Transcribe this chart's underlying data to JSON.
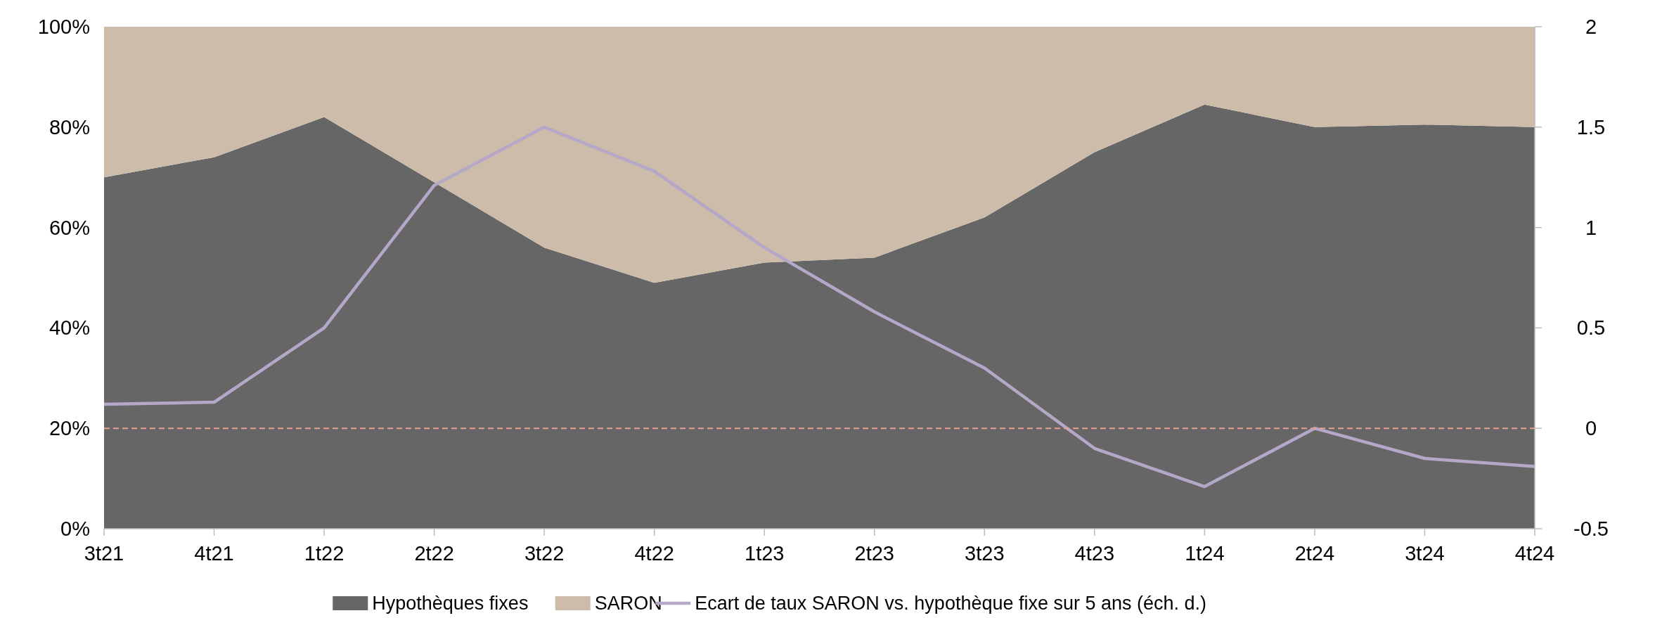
{
  "chart_data": {
    "type": "area",
    "stacked": true,
    "categories": [
      "3t21",
      "4t21",
      "1t22",
      "2t22",
      "3t22",
      "4t22",
      "1t23",
      "2t23",
      "3t23",
      "4t23",
      "1t24",
      "2t24",
      "3t24",
      "4t24"
    ],
    "series": [
      {
        "name": "Hypothèques fixes",
        "color": "#666666",
        "values": [
          70,
          74,
          82,
          69,
          56,
          49,
          53,
          54,
          62,
          75,
          84.5,
          80,
          80.5,
          80
        ]
      },
      {
        "name": "SARON",
        "color": "#cdbcaa",
        "values": [
          30,
          26,
          18,
          31,
          44,
          51,
          47,
          46,
          38,
          25,
          15.5,
          20,
          19.5,
          20
        ]
      },
      {
        "name": "Ecart de taux SARON vs. hypothèque fixe sur 5 ans (éch. d.)",
        "type": "line",
        "axis": "y2",
        "color": "#b4a7c8",
        "values": [
          0.12,
          0.13,
          0.5,
          1.21,
          1.5,
          1.28,
          0.9,
          0.58,
          0.3,
          -0.1,
          -0.29,
          0,
          -0.15,
          -0.19
        ]
      }
    ],
    "ylim": [
      0,
      100
    ],
    "yticks": [
      {
        "value": 0,
        "label": "0%"
      },
      {
        "value": 20,
        "label": "20%"
      },
      {
        "value": 40,
        "label": "40%"
      },
      {
        "value": 60,
        "label": "60%"
      },
      {
        "value": 80,
        "label": "80%"
      },
      {
        "value": 100,
        "label": "100%"
      }
    ],
    "y2lim": [
      -0.5,
      2
    ],
    "y2ticks": [
      -0.5,
      0,
      0.5,
      1,
      1.5,
      2
    ],
    "ref_lines": [
      {
        "axis": "y2",
        "value": 0,
        "color": "#e8a090",
        "line_style": "dashed"
      }
    ],
    "legend": "bottom",
    "grid": false
  }
}
